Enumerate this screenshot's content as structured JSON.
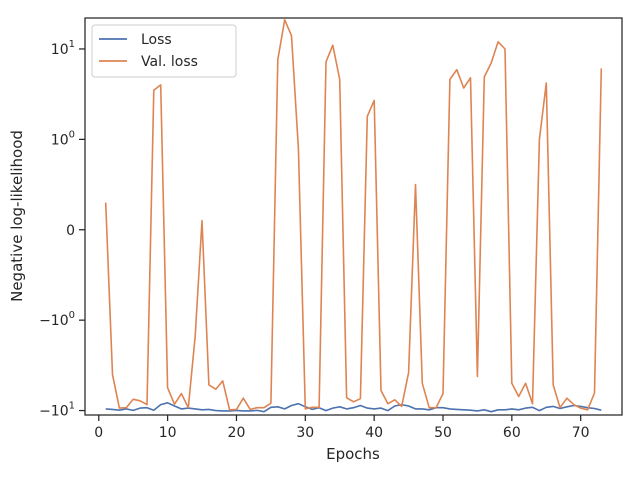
{
  "chart_data": {
    "type": "line",
    "title": "",
    "xlabel": "Epochs",
    "ylabel": "Negative log-likelihood",
    "yscale": "symlog",
    "linthresh": 1,
    "xlim": [
      -2,
      76
    ],
    "ylim": [
      -11.2,
      22
    ],
    "grid": false,
    "legend_position": "top-left",
    "x_ticks": [
      {
        "value": 0,
        "label": "0"
      },
      {
        "value": 10,
        "label": "10"
      },
      {
        "value": 20,
        "label": "20"
      },
      {
        "value": 30,
        "label": "30"
      },
      {
        "value": 40,
        "label": "40"
      },
      {
        "value": 50,
        "label": "50"
      },
      {
        "value": 60,
        "label": "60"
      },
      {
        "value": 70,
        "label": "70"
      }
    ],
    "y_ticks": [
      {
        "value": -10,
        "base": "−10",
        "exp": "1"
      },
      {
        "value": -1,
        "base": "−10",
        "exp": "0"
      },
      {
        "value": 0,
        "base": "0",
        "exp": ""
      },
      {
        "value": 1,
        "base": "10",
        "exp": "0"
      },
      {
        "value": 10,
        "base": "10",
        "exp": "1"
      }
    ],
    "series": [
      {
        "name": "Loss",
        "color": "#4c72b0",
        "x": [
          1,
          2,
          3,
          4,
          5,
          6,
          7,
          8,
          9,
          10,
          11,
          12,
          13,
          14,
          15,
          16,
          17,
          18,
          19,
          20,
          21,
          22,
          23,
          24,
          25,
          26,
          27,
          28,
          29,
          30,
          31,
          32,
          33,
          34,
          35,
          36,
          37,
          38,
          39,
          40,
          41,
          42,
          43,
          44,
          45,
          46,
          47,
          48,
          49,
          50,
          51,
          52,
          53,
          54,
          55,
          56,
          57,
          58,
          59,
          60,
          61,
          62,
          63,
          64,
          65,
          66,
          67,
          68,
          69,
          70,
          71,
          72,
          73
        ],
        "y": [
          -9.6,
          -9.7,
          -9.9,
          -9.6,
          -9.95,
          -9.4,
          -9.3,
          -9.9,
          -8.6,
          -8.2,
          -8.9,
          -9.6,
          -9.4,
          -9.6,
          -9.8,
          -9.7,
          -10.0,
          -10.1,
          -10.1,
          -9.95,
          -10.1,
          -10.1,
          -9.95,
          -10.3,
          -9.2,
          -9.1,
          -9.6,
          -8.8,
          -8.4,
          -9.1,
          -9.7,
          -9.3,
          -10.0,
          -9.4,
          -9.1,
          -9.6,
          -9.3,
          -8.8,
          -9.4,
          -9.6,
          -9.4,
          -10.0,
          -8.9,
          -8.6,
          -8.9,
          -9.6,
          -9.6,
          -9.8,
          -9.3,
          -9.3,
          -9.6,
          -9.7,
          -9.8,
          -9.9,
          -10.1,
          -9.8,
          -10.3,
          -9.8,
          -9.8,
          -9.6,
          -9.8,
          -9.4,
          -9.2,
          -10.0,
          -9.2,
          -9.0,
          -9.5,
          -9.1,
          -8.8,
          -9.0,
          -9.3,
          -9.5,
          -9.9
        ]
      },
      {
        "name": "Val. loss",
        "color": "#dd8452",
        "x": [
          1,
          2,
          3,
          4,
          5,
          6,
          7,
          8,
          9,
          10,
          11,
          12,
          13,
          14,
          15,
          16,
          17,
          18,
          19,
          20,
          21,
          22,
          23,
          24,
          25,
          26,
          27,
          28,
          29,
          30,
          31,
          32,
          33,
          34,
          35,
          36,
          37,
          38,
          39,
          40,
          41,
          42,
          43,
          44,
          45,
          46,
          47,
          48,
          49,
          50,
          51,
          52,
          53,
          54,
          55,
          56,
          57,
          58,
          59,
          60,
          61,
          62,
          63,
          64,
          65,
          66,
          67,
          68,
          69,
          70,
          71,
          72,
          73
        ],
        "y": [
          0.3,
          -4,
          -9.4,
          -9.3,
          -7.5,
          -7.8,
          -8.6,
          3.5,
          4,
          -5.6,
          -8.5,
          -6.5,
          -9.3,
          -1.5,
          0.1,
          -5.2,
          -5.8,
          -4.7,
          -9.8,
          -9.7,
          -7.3,
          -9.7,
          -9.3,
          -9.3,
          -8.3,
          7.6,
          21,
          14,
          0.9,
          -9.6,
          -9.2,
          -9.2,
          7.2,
          11,
          4.6,
          -7.2,
          -8,
          -7.4,
          1.8,
          2.7,
          -6,
          -8.4,
          -7.6,
          -9,
          -3.8,
          0.5,
          -5,
          -9.3,
          -9.3,
          -6.5,
          4.6,
          5.9,
          3.7,
          4.8,
          -4.2,
          4.9,
          7,
          12,
          10,
          -5,
          -7,
          -5,
          -8.4,
          1,
          4.2,
          -5.2,
          -9.3,
          -7.3,
          -8.6,
          -9.4,
          -9.8,
          -6.4,
          6.1
        ]
      }
    ]
  }
}
